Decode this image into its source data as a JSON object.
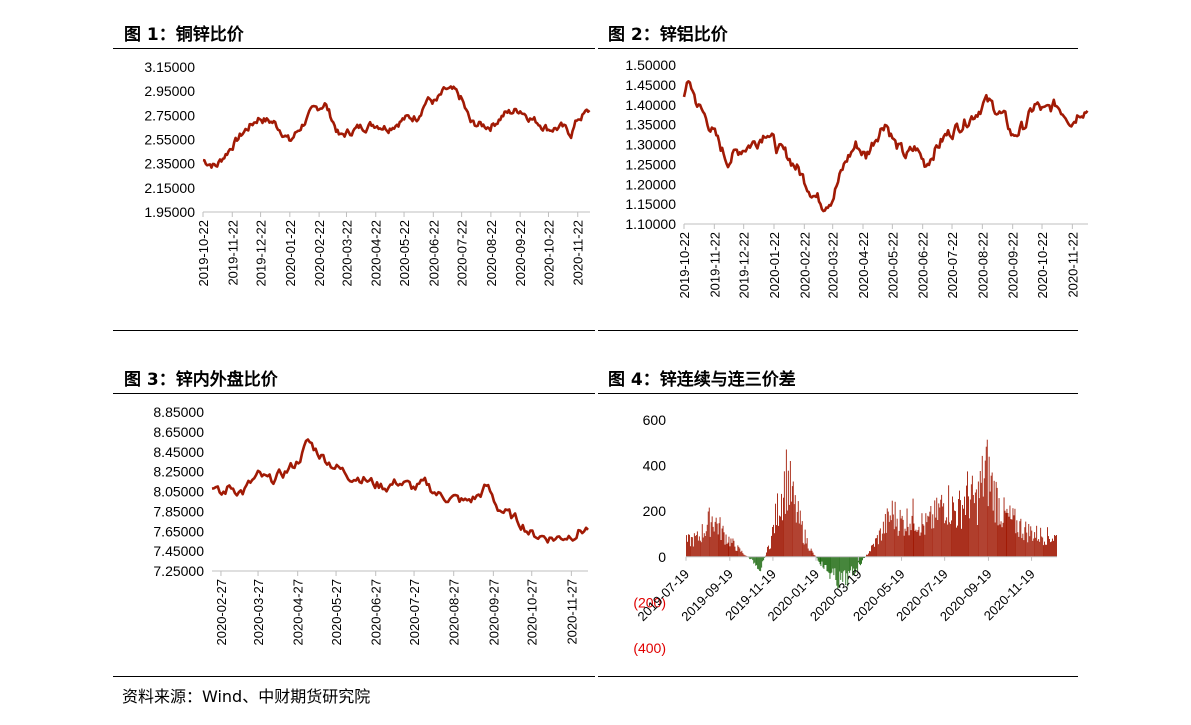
{
  "source": "资料来源：Wind、中财期货研究院",
  "colors": {
    "line": "#a11a05",
    "bar_pos": "#a11a05",
    "bar_neg": "#1e6b12",
    "neg_label": "#e00000"
  },
  "chart_data": [
    {
      "id": "c1",
      "title": "图 1：铜锌比价",
      "type": "line",
      "ylim": [
        1.95,
        3.15
      ],
      "yticks": [
        "3.15000",
        "2.95000",
        "2.75000",
        "2.55000",
        "2.35000",
        "2.15000",
        "1.95000"
      ],
      "xticks": [
        "2019-10-22",
        "2019-11-22",
        "2019-12-22",
        "2020-01-22",
        "2020-02-22",
        "2020-03-22",
        "2020-04-22",
        "2020-05-22",
        "2020-06-22",
        "2020-07-22",
        "2020-08-22",
        "2020-09-22",
        "2020-10-22",
        "2020-11-22"
      ],
      "x": [
        "2019-10-22",
        "2019-11-05",
        "2019-11-22",
        "2019-12-05",
        "2019-12-20",
        "2020-01-05",
        "2020-01-15",
        "2020-01-22",
        "2020-02-05",
        "2020-02-15",
        "2020-02-28",
        "2020-03-05",
        "2020-03-15",
        "2020-03-22",
        "2020-04-05",
        "2020-04-22",
        "2020-05-05",
        "2020-05-22",
        "2020-06-05",
        "2020-06-15",
        "2020-06-25",
        "2020-07-05",
        "2020-07-15",
        "2020-07-22",
        "2020-08-01",
        "2020-08-22",
        "2020-09-05",
        "2020-09-22",
        "2020-10-05",
        "2020-10-22",
        "2020-11-05",
        "2020-11-15",
        "2020-11-22",
        "2020-12-05"
      ],
      "values": [
        2.38,
        2.33,
        2.5,
        2.62,
        2.73,
        2.69,
        2.61,
        2.53,
        2.68,
        2.78,
        2.85,
        2.75,
        2.57,
        2.6,
        2.65,
        2.68,
        2.65,
        2.72,
        2.74,
        2.88,
        2.86,
        2.96,
        2.94,
        2.88,
        2.68,
        2.66,
        2.76,
        2.8,
        2.72,
        2.64,
        2.65,
        2.6,
        2.72,
        2.79
      ]
    },
    {
      "id": "c2",
      "title": "图 2：锌铝比价",
      "type": "line",
      "ylim": [
        1.1,
        1.5
      ],
      "yticks": [
        "1.50000",
        "1.45000",
        "1.40000",
        "1.35000",
        "1.30000",
        "1.25000",
        "1.20000",
        "1.15000",
        "1.10000"
      ],
      "xticks": [
        "2019-10-22",
        "2019-11-22",
        "2019-12-22",
        "2020-01-22",
        "2020-02-22",
        "2020-03-22",
        "2020-04-22",
        "2020-05-22",
        "2020-06-22",
        "2020-07-22",
        "2020-08-22",
        "2020-09-22",
        "2020-10-22",
        "2020-11-22"
      ],
      "x": [
        "2019-10-22",
        "2019-10-28",
        "2019-11-05",
        "2019-11-15",
        "2019-11-25",
        "2019-12-05",
        "2019-12-20",
        "2020-01-05",
        "2020-01-15",
        "2020-01-25",
        "2020-02-05",
        "2020-02-15",
        "2020-02-25",
        "2020-03-05",
        "2020-03-12",
        "2020-03-22",
        "2020-04-05",
        "2020-04-15",
        "2020-04-25",
        "2020-05-05",
        "2020-05-15",
        "2020-05-25",
        "2020-06-05",
        "2020-06-15",
        "2020-06-25",
        "2020-07-05",
        "2020-07-15",
        "2020-07-25",
        "2020-08-05",
        "2020-08-15",
        "2020-08-25",
        "2020-09-05",
        "2020-09-15",
        "2020-09-22",
        "2020-10-05",
        "2020-10-15",
        "2020-10-25",
        "2020-11-05",
        "2020-11-15",
        "2020-11-22",
        "2020-12-01",
        "2020-12-08"
      ],
      "values": [
        1.43,
        1.455,
        1.4,
        1.36,
        1.31,
        1.26,
        1.29,
        1.31,
        1.34,
        1.29,
        1.27,
        1.24,
        1.2,
        1.17,
        1.15,
        1.17,
        1.26,
        1.3,
        1.27,
        1.32,
        1.36,
        1.3,
        1.27,
        1.29,
        1.25,
        1.29,
        1.32,
        1.34,
        1.36,
        1.38,
        1.41,
        1.39,
        1.36,
        1.32,
        1.35,
        1.4,
        1.38,
        1.4,
        1.38,
        1.36,
        1.39,
        1.39
      ]
    },
    {
      "id": "c3",
      "title": "图 3：锌内外盘比价",
      "type": "line",
      "ylim": [
        7.25,
        8.85
      ],
      "yticks": [
        "8.85000",
        "8.65000",
        "8.45000",
        "8.25000",
        "8.05000",
        "7.85000",
        "7.65000",
        "7.45000",
        "7.25000"
      ],
      "xticks": [
        "2020-02-27",
        "2020-03-27",
        "2020-04-27",
        "2020-05-27",
        "2020-06-27",
        "2020-07-27",
        "2020-08-27",
        "2020-09-27",
        "2020-10-27",
        "2020-11-27"
      ],
      "x": [
        "2020-02-20",
        "2020-02-27",
        "2020-03-05",
        "2020-03-15",
        "2020-03-27",
        "2020-04-05",
        "2020-04-15",
        "2020-04-27",
        "2020-05-05",
        "2020-05-15",
        "2020-05-27",
        "2020-06-05",
        "2020-06-15",
        "2020-06-27",
        "2020-07-05",
        "2020-07-15",
        "2020-07-27",
        "2020-08-05",
        "2020-08-15",
        "2020-08-27",
        "2020-09-05",
        "2020-09-15",
        "2020-09-22",
        "2020-09-30",
        "2020-10-10",
        "2020-10-20",
        "2020-10-27",
        "2020-11-05",
        "2020-11-15",
        "2020-11-27",
        "2020-12-05",
        "2020-12-10"
      ],
      "values": [
        8.12,
        8.0,
        8.1,
        8.05,
        8.2,
        8.15,
        8.22,
        8.35,
        8.55,
        8.42,
        8.3,
        8.22,
        8.2,
        8.12,
        8.1,
        8.15,
        8.08,
        8.12,
        8.02,
        7.98,
        7.94,
        8.0,
        8.1,
        7.9,
        7.8,
        7.72,
        7.62,
        7.6,
        7.58,
        7.62,
        7.66,
        7.68
      ]
    },
    {
      "id": "c4",
      "title": "图 4：锌连续与连三价差",
      "type": "bar",
      "ylim": [
        -400,
        600
      ],
      "yticks": [
        "600",
        "400",
        "200",
        "0",
        "(200)",
        "(400)"
      ],
      "ytick_values": [
        600,
        400,
        200,
        0,
        -200,
        -400
      ],
      "xticks": [
        "2019-07-19",
        "2019-09-19",
        "2019-11-19",
        "2020-01-19",
        "2020-03-19",
        "2020-05-19",
        "2020-07-19",
        "2020-09-19",
        "2020-11-19"
      ],
      "x_range": [
        "2019-07-19",
        "2020-12-25"
      ],
      "anchors": [
        {
          "date": "2019-07-19",
          "value": 80
        },
        {
          "date": "2019-08-05",
          "value": 100
        },
        {
          "date": "2019-08-25",
          "value": 210
        },
        {
          "date": "2019-09-10",
          "value": 120
        },
        {
          "date": "2019-09-25",
          "value": 60
        },
        {
          "date": "2019-10-10",
          "value": 10
        },
        {
          "date": "2019-10-20",
          "value": -20
        },
        {
          "date": "2019-11-01",
          "value": -60
        },
        {
          "date": "2019-11-15",
          "value": 80
        },
        {
          "date": "2019-11-28",
          "value": 300
        },
        {
          "date": "2019-12-08",
          "value": 430
        },
        {
          "date": "2019-12-20",
          "value": 250
        },
        {
          "date": "2020-01-01",
          "value": 120
        },
        {
          "date": "2020-01-12",
          "value": 30
        },
        {
          "date": "2020-01-22",
          "value": -20
        },
        {
          "date": "2020-02-05",
          "value": -80
        },
        {
          "date": "2020-02-20",
          "value": -130
        },
        {
          "date": "2020-03-05",
          "value": -110
        },
        {
          "date": "2020-03-20",
          "value": -40
        },
        {
          "date": "2020-04-05",
          "value": 40
        },
        {
          "date": "2020-04-20",
          "value": 130
        },
        {
          "date": "2020-05-05",
          "value": 230
        },
        {
          "date": "2020-05-20",
          "value": 180
        },
        {
          "date": "2020-06-05",
          "value": 220
        },
        {
          "date": "2020-06-20",
          "value": 160
        },
        {
          "date": "2020-07-05",
          "value": 210
        },
        {
          "date": "2020-07-20",
          "value": 300
        },
        {
          "date": "2020-08-05",
          "value": 230
        },
        {
          "date": "2020-08-20",
          "value": 330
        },
        {
          "date": "2020-09-01",
          "value": 280
        },
        {
          "date": "2020-09-15",
          "value": 470
        },
        {
          "date": "2020-09-25",
          "value": 350
        },
        {
          "date": "2020-10-10",
          "value": 220
        },
        {
          "date": "2020-10-25",
          "value": 180
        },
        {
          "date": "2020-11-10",
          "value": 140
        },
        {
          "date": "2020-11-25",
          "value": 120
        },
        {
          "date": "2020-12-10",
          "value": 110
        },
        {
          "date": "2020-12-25",
          "value": 100
        }
      ]
    }
  ]
}
